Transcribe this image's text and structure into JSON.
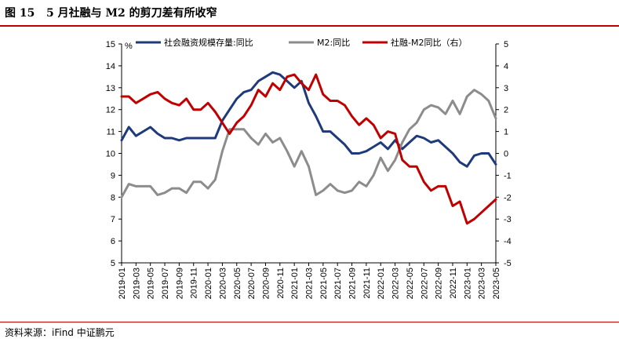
{
  "header": {
    "figure_number": "图 15",
    "title": "5 月社融与 M2 的剪刀差有所收窄"
  },
  "footer": {
    "source": "资料来源：iFind  中证鹏元"
  },
  "colors": {
    "accent_rule": "#c00000",
    "series_social_financing": "#1f3a7a",
    "series_m2": "#8c8c8c",
    "series_gap": "#c00000"
  },
  "chart_data": {
    "type": "line",
    "left_axis": {
      "ylim": [
        5,
        15
      ],
      "ticks": [
        5,
        6,
        7,
        8,
        9,
        10,
        11,
        12,
        13,
        14,
        15
      ],
      "unit": "%"
    },
    "right_axis": {
      "ylim": [
        -5,
        5
      ],
      "ticks": [
        -5,
        -4,
        -3,
        -2,
        -1,
        0,
        1,
        2,
        3,
        4,
        5
      ]
    },
    "x_tick_labels": [
      "2019-01",
      "2019-03",
      "2019-05",
      "2019-07",
      "2019-09",
      "2019-11",
      "2020-01",
      "2020-03",
      "2020-05",
      "2020-07",
      "2020-09",
      "2020-11",
      "2021-01",
      "2021-03",
      "2021-05",
      "2021-07",
      "2021-09",
      "2021-11",
      "2022-01",
      "2022-03",
      "2022-05",
      "2022-07",
      "2022-09",
      "2022-11",
      "2023-01",
      "2023-03",
      "2023-05"
    ],
    "legend": [
      "社会融资规模存量:同比",
      "M2:同比",
      "社融-M2同比（右）"
    ],
    "grid": false,
    "series": [
      {
        "name": "社会融资规模存量:同比",
        "axis": "left",
        "x": [
          "2019-01",
          "2019-02",
          "2019-03",
          "2019-04",
          "2019-05",
          "2019-06",
          "2019-07",
          "2019-08",
          "2019-09",
          "2019-10",
          "2019-11",
          "2019-12",
          "2020-01",
          "2020-02",
          "2020-03",
          "2020-04",
          "2020-05",
          "2020-06",
          "2020-07",
          "2020-08",
          "2020-09",
          "2020-10",
          "2020-11",
          "2020-12",
          "2021-01",
          "2021-02",
          "2021-03",
          "2021-04",
          "2021-05",
          "2021-06",
          "2021-07",
          "2021-08",
          "2021-09",
          "2021-10",
          "2021-11",
          "2021-12",
          "2022-01",
          "2022-02",
          "2022-03",
          "2022-04",
          "2022-05",
          "2022-06",
          "2022-07",
          "2022-08",
          "2022-09",
          "2022-10",
          "2022-11",
          "2022-12",
          "2023-01",
          "2023-02",
          "2023-03",
          "2023-04",
          "2023-05"
        ],
        "values": [
          10.6,
          11.2,
          10.8,
          11.0,
          11.2,
          10.9,
          10.7,
          10.7,
          10.6,
          10.7,
          10.7,
          10.7,
          10.7,
          10.7,
          11.5,
          12.0,
          12.5,
          12.8,
          12.9,
          13.3,
          13.5,
          13.7,
          13.6,
          13.3,
          13.0,
          13.3,
          12.3,
          11.7,
          11.0,
          11.0,
          10.7,
          10.4,
          10.0,
          10.0,
          10.1,
          10.3,
          10.5,
          10.2,
          10.6,
          10.2,
          10.5,
          10.8,
          10.7,
          10.5,
          10.6,
          10.3,
          10.0,
          9.6,
          9.4,
          9.9,
          10.0,
          10.0,
          9.5
        ]
      },
      {
        "name": "M2:同比",
        "axis": "left",
        "x": [
          "2019-01",
          "2019-02",
          "2019-03",
          "2019-04",
          "2019-05",
          "2019-06",
          "2019-07",
          "2019-08",
          "2019-09",
          "2019-10",
          "2019-11",
          "2019-12",
          "2020-01",
          "2020-02",
          "2020-03",
          "2020-04",
          "2020-05",
          "2020-06",
          "2020-07",
          "2020-08",
          "2020-09",
          "2020-10",
          "2020-11",
          "2020-12",
          "2021-01",
          "2021-02",
          "2021-03",
          "2021-04",
          "2021-05",
          "2021-06",
          "2021-07",
          "2021-08",
          "2021-09",
          "2021-10",
          "2021-11",
          "2021-12",
          "2022-01",
          "2022-02",
          "2022-03",
          "2022-04",
          "2022-05",
          "2022-06",
          "2022-07",
          "2022-08",
          "2022-09",
          "2022-10",
          "2022-11",
          "2022-12",
          "2023-01",
          "2023-02",
          "2023-03",
          "2023-04",
          "2023-05"
        ],
        "values": [
          8.0,
          8.6,
          8.5,
          8.5,
          8.5,
          8.1,
          8.2,
          8.4,
          8.4,
          8.2,
          8.7,
          8.7,
          8.4,
          8.8,
          10.1,
          11.1,
          11.1,
          11.1,
          10.7,
          10.4,
          10.9,
          10.5,
          10.7,
          10.1,
          9.4,
          10.1,
          9.4,
          8.1,
          8.3,
          8.6,
          8.3,
          8.2,
          8.3,
          8.7,
          8.5,
          9.0,
          9.8,
          9.2,
          9.7,
          10.5,
          11.1,
          11.4,
          12.0,
          12.2,
          12.1,
          11.8,
          12.4,
          11.8,
          12.6,
          12.9,
          12.7,
          12.4,
          11.6
        ]
      },
      {
        "name": "社融-M2同比（右）",
        "axis": "right",
        "x": [
          "2019-01",
          "2019-02",
          "2019-03",
          "2019-04",
          "2019-05",
          "2019-06",
          "2019-07",
          "2019-08",
          "2019-09",
          "2019-10",
          "2019-11",
          "2019-12",
          "2020-01",
          "2020-02",
          "2020-03",
          "2020-04",
          "2020-05",
          "2020-06",
          "2020-07",
          "2020-08",
          "2020-09",
          "2020-10",
          "2020-11",
          "2020-12",
          "2021-01",
          "2021-02",
          "2021-03",
          "2021-04",
          "2021-05",
          "2021-06",
          "2021-07",
          "2021-08",
          "2021-09",
          "2021-10",
          "2021-11",
          "2021-12",
          "2022-01",
          "2022-02",
          "2022-03",
          "2022-04",
          "2022-05",
          "2022-06",
          "2022-07",
          "2022-08",
          "2022-09",
          "2022-10",
          "2022-11",
          "2022-12",
          "2023-01",
          "2023-02",
          "2023-03",
          "2023-04",
          "2023-05"
        ],
        "values": [
          2.6,
          2.6,
          2.3,
          2.5,
          2.7,
          2.8,
          2.5,
          2.3,
          2.2,
          2.5,
          2.0,
          2.0,
          2.3,
          1.9,
          1.4,
          0.9,
          1.4,
          1.7,
          2.2,
          2.9,
          2.6,
          3.2,
          2.9,
          3.5,
          3.6,
          3.2,
          2.9,
          3.6,
          2.7,
          2.4,
          2.4,
          2.2,
          1.7,
          1.3,
          1.6,
          1.3,
          0.7,
          1.0,
          0.9,
          -0.3,
          -0.6,
          -0.6,
          -1.3,
          -1.7,
          -1.5,
          -1.5,
          -2.4,
          -2.2,
          -3.2,
          -3.0,
          -2.7,
          -2.4,
          -2.1
        ]
      }
    ]
  }
}
